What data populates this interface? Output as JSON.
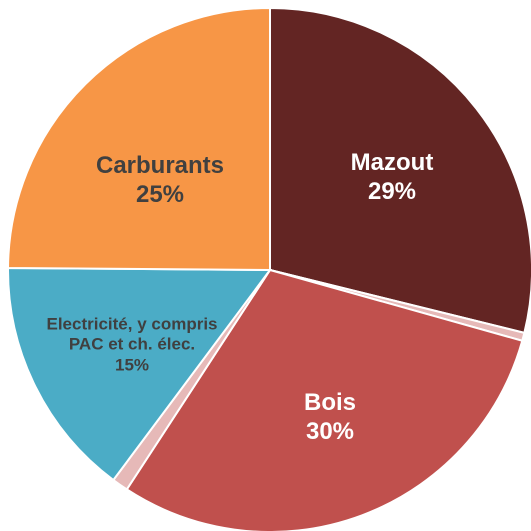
{
  "chart_data": {
    "type": "pie",
    "categories": [
      "Mazout",
      null,
      "Bois",
      null,
      "Electricité, y compris PAC et ch. élec.",
      "Carburants"
    ],
    "values": [
      29,
      0.5,
      30,
      1,
      15,
      25
    ],
    "value_labels": [
      "29%",
      null,
      "30%",
      null,
      "15%",
      "25%"
    ],
    "colors": [
      "#632523",
      "#e6b9b8",
      "#c0504d",
      "#e6b9b8",
      "#4bacc6",
      "#f79646"
    ]
  }
}
